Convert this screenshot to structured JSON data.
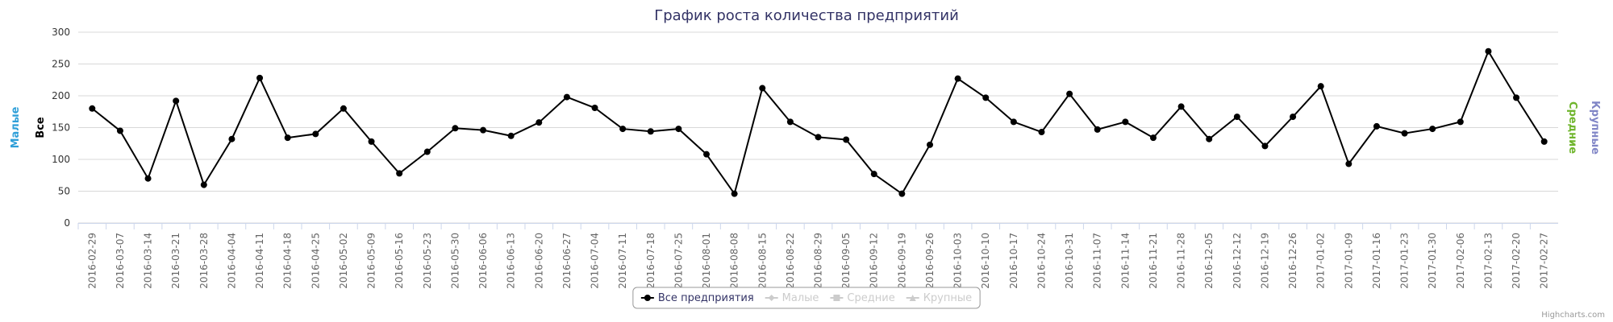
{
  "chart_data": {
    "type": "line",
    "title": "График роста количества предприятий",
    "categories": [
      "2016-02-29",
      "2016-03-07",
      "2016-03-14",
      "2016-03-21",
      "2016-03-28",
      "2016-04-04",
      "2016-04-11",
      "2016-04-18",
      "2016-04-25",
      "2016-05-02",
      "2016-05-09",
      "2016-05-16",
      "2016-05-23",
      "2016-05-30",
      "2016-06-06",
      "2016-06-13",
      "2016-06-20",
      "2016-06-27",
      "2016-07-04",
      "2016-07-11",
      "2016-07-18",
      "2016-07-25",
      "2016-08-01",
      "2016-08-08",
      "2016-08-15",
      "2016-08-22",
      "2016-08-29",
      "2016-09-05",
      "2016-09-12",
      "2016-09-19",
      "2016-09-26",
      "2016-10-03",
      "2016-10-10",
      "2016-10-17",
      "2016-10-24",
      "2016-10-31",
      "2016-11-07",
      "2016-11-14",
      "2016-11-21",
      "2016-11-28",
      "2016-12-05",
      "2016-12-12",
      "2016-12-19",
      "2016-12-26",
      "2017-01-02",
      "2017-01-09",
      "2017-01-16",
      "2017-01-23",
      "2017-01-30",
      "2017-02-06",
      "2017-02-13",
      "2017-02-20",
      "2017-02-27"
    ],
    "series": [
      {
        "name": "Все предприятия",
        "color": "#000000",
        "marker": "circle",
        "visible": true,
        "values": [
          180,
          145,
          70,
          192,
          60,
          132,
          228,
          134,
          140,
          180,
          128,
          78,
          112,
          149,
          146,
          137,
          158,
          198,
          181,
          148,
          144,
          148,
          108,
          46,
          212,
          159,
          135,
          131,
          77,
          46,
          123,
          227,
          197,
          159,
          143,
          203,
          147,
          159,
          134,
          183,
          132,
          167,
          121,
          167,
          215,
          93,
          152,
          141,
          148,
          159,
          270,
          197,
          128
        ]
      },
      {
        "name": "Малые",
        "color": "#2f9fd8",
        "marker": "diamond",
        "visible": false
      },
      {
        "name": "Средние",
        "color": "#6fb52c",
        "marker": "square",
        "visible": false
      },
      {
        "name": "Крупные",
        "color": "#8085c6",
        "marker": "triangle",
        "visible": false
      }
    ],
    "axes": [
      {
        "title": "Малые",
        "color": "#2f9fd8",
        "side": "left"
      },
      {
        "title": "Все",
        "color": "#000000",
        "side": "left"
      },
      {
        "title": "Средние",
        "color": "#6fb52c",
        "side": "right"
      },
      {
        "title": "Крупные",
        "color": "#8085c6",
        "side": "right"
      }
    ],
    "ylim": [
      0,
      300
    ],
    "yticks": [
      0,
      50,
      100,
      150,
      200,
      250,
      300
    ],
    "grid": true,
    "legend": "bottom",
    "credits": "Highcharts.com"
  }
}
